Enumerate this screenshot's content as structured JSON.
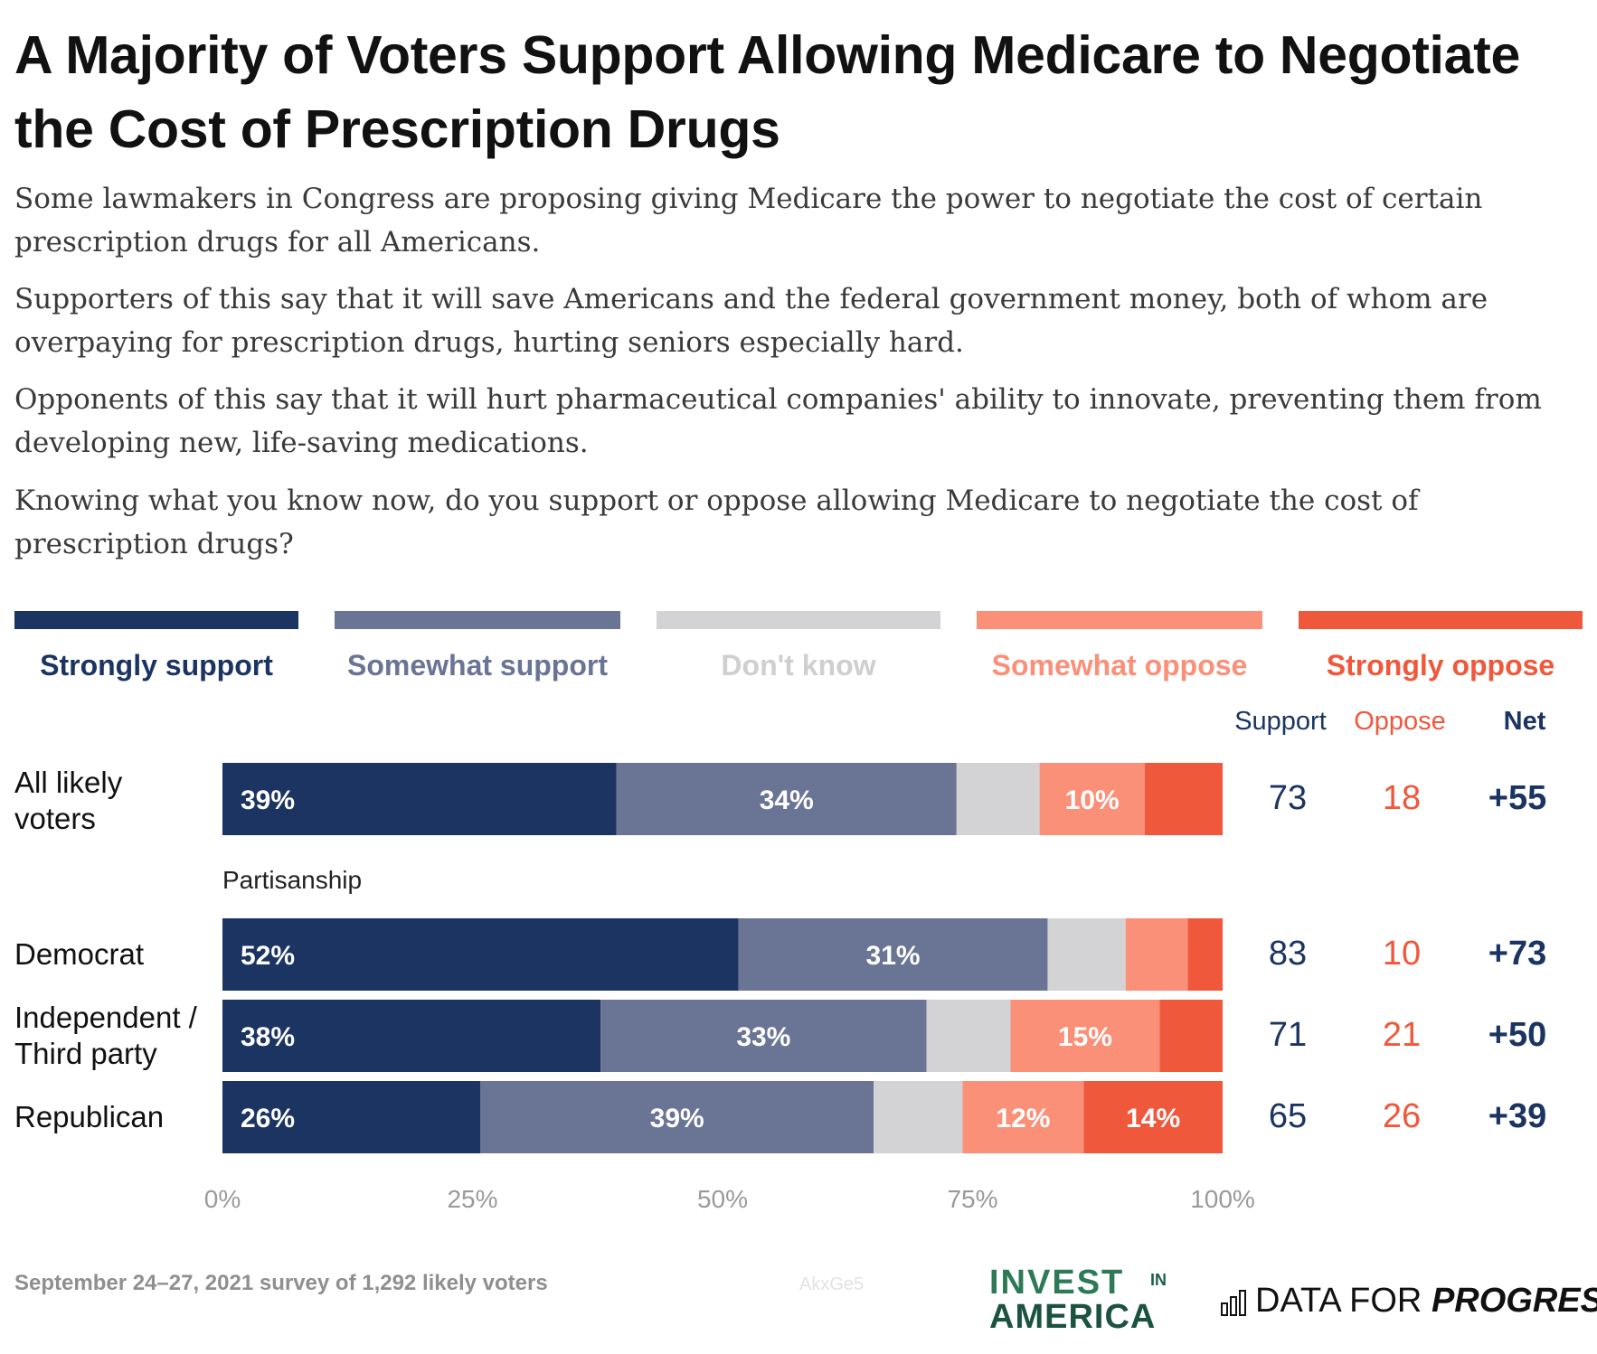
{
  "title": "A Majority of Voters Support Allowing Medicare to Negotiate the Cost of Prescription Drugs",
  "paragraphs": [
    "Some lawmakers in Congress are proposing giving Medicare the power to negotiate the cost of certain prescription drugs for all Americans.",
    "Supporters of this say that it will save Americans and the federal government money, both of whom are overpaying for prescription drugs, hurting seniors especially hard.",
    "Opponents of this say that it will hurt pharmaceutical companies' ability to innovate, preventing them from developing new, life-saving medications.",
    "Knowing what you know now, do you support or oppose allowing Medicare to negotiate the cost of prescription drugs?"
  ],
  "legend": [
    {
      "label": "Strongly support",
      "color": "#1b3461",
      "text_color": "#1b3461"
    },
    {
      "label": "Somewhat support",
      "color": "#6a7495",
      "text_color": "#6a7495"
    },
    {
      "label": "Don't know",
      "color": "#d3d3d5",
      "text_color": "#cfcfd1"
    },
    {
      "label": "Somewhat oppose",
      "color": "#fb9079",
      "text_color": "#fb9079"
    },
    {
      "label": "Strongly oppose",
      "color": "#f0583c",
      "text_color": "#f0583c"
    }
  ],
  "columns": {
    "support": "Support",
    "oppose": "Oppose",
    "net": "Net"
  },
  "colors": {
    "support": "#1b3461",
    "oppose": "#f0583c"
  },
  "group_label": "Partisanship",
  "rows": {
    "all": {
      "label_line1": "All likely",
      "label_line2": "voters",
      "support": "73",
      "oppose": "18",
      "net": "+55"
    },
    "dem": {
      "label_line1": "Democrat",
      "support": "83",
      "oppose": "10",
      "net": "+73"
    },
    "ind": {
      "label_line1": "Independent /",
      "label_line2": "Third party",
      "support": "71",
      "oppose": "21",
      "net": "+50"
    },
    "rep": {
      "label_line1": "Republican",
      "support": "65",
      "oppose": "26",
      "net": "+39"
    }
  },
  "chart_data": {
    "type": "bar",
    "orientation": "horizontal",
    "stacked": true,
    "categories": [
      "All likely voters",
      "Democrat",
      "Independent / Third party",
      "Republican"
    ],
    "series": [
      {
        "name": "Strongly support",
        "values": [
          39.4,
          51.6,
          37.8,
          25.8
        ],
        "labels": [
          "39%",
          "52%",
          "38%",
          "26%"
        ]
      },
      {
        "name": "Somewhat support",
        "values": [
          34.0,
          30.9,
          32.6,
          39.3
        ],
        "labels": [
          "34%",
          "31%",
          "33%",
          "39%"
        ]
      },
      {
        "name": "Don't know",
        "values": [
          8.3,
          7.8,
          8.4,
          8.9
        ],
        "labels": [
          "",
          "",
          "",
          ""
        ]
      },
      {
        "name": "Somewhat oppose",
        "values": [
          10.5,
          6.2,
          14.9,
          12.1
        ],
        "labels": [
          "10%",
          "",
          "15%",
          "12%"
        ]
      },
      {
        "name": "Strongly oppose",
        "values": [
          7.8,
          3.5,
          6.3,
          13.9
        ],
        "labels": [
          "",
          "",
          "",
          "14%"
        ]
      }
    ],
    "x_ticks": [
      "0%",
      "25%",
      "50%",
      "75%",
      "100%"
    ],
    "xlim": [
      0,
      100
    ]
  },
  "footer": {
    "source": "September 24–27, 2021 survey of 1,292 likely voters",
    "code": "AkxGe5"
  },
  "logos": {
    "ia_top": "INVEST",
    "ia_in": "IN",
    "ia_bottom": "AMERICA",
    "dfp_regular": "DATA FOR ",
    "dfp_bold": "PROGRESS"
  }
}
